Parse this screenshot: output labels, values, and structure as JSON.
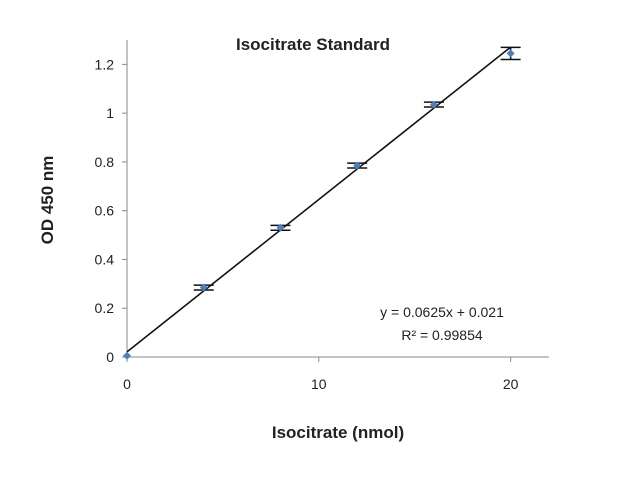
{
  "chart_data": {
    "type": "scatter",
    "title": "Isocitrate Standard",
    "xlabel": "Isocitrate (nmol)",
    "ylabel": "OD 450 nm",
    "xlim": [
      0,
      22
    ],
    "ylim": [
      0,
      1.3
    ],
    "xticks": [
      0,
      10,
      20
    ],
    "xtick_labels": [
      "0",
      "10",
      "20"
    ],
    "yticks": [
      0,
      0.2,
      0.4,
      0.6,
      0.8,
      1,
      1.2
    ],
    "ytick_labels": [
      "0",
      "0.2",
      "0.4",
      "0.6",
      "0.8",
      "1",
      "1.2"
    ],
    "grid": false,
    "legend": "none",
    "series": [
      {
        "x": [
          0,
          4,
          8,
          12,
          16,
          20
        ],
        "y": [
          0.005,
          0.285,
          0.53,
          0.785,
          1.035,
          1.245
        ],
        "error": [
          0.0,
          0.01,
          0.01,
          0.01,
          0.01,
          0.025
        ],
        "color": "#4a7fc1"
      }
    ],
    "trendline": {
      "slope": 0.0625,
      "intercept": 0.021,
      "x_range": [
        0,
        20
      ]
    },
    "annotations": {
      "equation": "y = 0.0625x + 0.021",
      "r_squared": "R² = 0.99854"
    }
  }
}
